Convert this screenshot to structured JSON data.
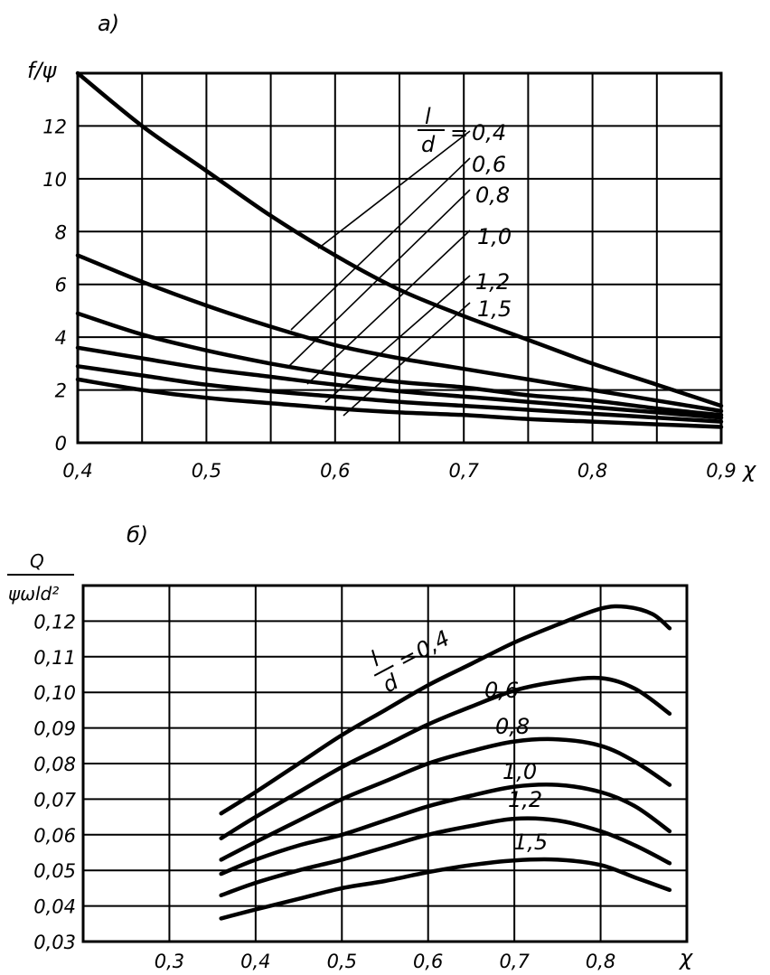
{
  "chart_data": [
    {
      "type": "line",
      "panel_label": "a)",
      "ylabel": "f/ψ",
      "xlabel": "χ",
      "xlim": [
        0.4,
        0.9
      ],
      "ylim": [
        0,
        14
      ],
      "x_ticks": [
        "0,4",
        "0,5",
        "0,6",
        "0,7",
        "0,8",
        "0,9"
      ],
      "y_ticks": [
        "0",
        "2",
        "4",
        "6",
        "8",
        "10",
        "12"
      ],
      "legend_ratio": {
        "num": "l",
        "den": "d"
      },
      "series": [
        {
          "name": "0,4",
          "x": [
            0.4,
            0.45,
            0.5,
            0.55,
            0.6,
            0.65,
            0.7,
            0.75,
            0.8,
            0.85,
            0.9
          ],
          "y": [
            14.0,
            12.0,
            10.3,
            8.6,
            7.1,
            5.8,
            4.8,
            3.9,
            3.0,
            2.2,
            1.4
          ]
        },
        {
          "name": "0,6",
          "x": [
            0.4,
            0.45,
            0.5,
            0.55,
            0.6,
            0.65,
            0.7,
            0.75,
            0.8,
            0.85,
            0.9
          ],
          "y": [
            7.1,
            6.1,
            5.2,
            4.4,
            3.7,
            3.2,
            2.8,
            2.4,
            2.0,
            1.6,
            1.2
          ]
        },
        {
          "name": "0,8",
          "x": [
            0.4,
            0.45,
            0.5,
            0.55,
            0.6,
            0.65,
            0.7,
            0.75,
            0.8,
            0.85,
            0.9
          ],
          "y": [
            4.9,
            4.1,
            3.5,
            3.0,
            2.6,
            2.3,
            2.1,
            1.8,
            1.6,
            1.3,
            1.05
          ]
        },
        {
          "name": "1,0",
          "x": [
            0.4,
            0.45,
            0.5,
            0.55,
            0.6,
            0.65,
            0.7,
            0.75,
            0.8,
            0.85,
            0.9
          ],
          "y": [
            3.6,
            3.2,
            2.8,
            2.5,
            2.2,
            1.95,
            1.75,
            1.55,
            1.35,
            1.15,
            0.95
          ]
        },
        {
          "name": "1,2",
          "x": [
            0.4,
            0.45,
            0.5,
            0.55,
            0.6,
            0.65,
            0.7,
            0.75,
            0.8,
            0.85,
            0.9
          ],
          "y": [
            2.9,
            2.55,
            2.2,
            1.95,
            1.75,
            1.55,
            1.4,
            1.25,
            1.1,
            0.95,
            0.8
          ]
        },
        {
          "name": "1,5",
          "x": [
            0.4,
            0.45,
            0.5,
            0.55,
            0.6,
            0.65,
            0.7,
            0.75,
            0.8,
            0.85,
            0.9
          ],
          "y": [
            2.4,
            2.0,
            1.7,
            1.5,
            1.3,
            1.15,
            1.05,
            0.9,
            0.8,
            0.7,
            0.6
          ]
        }
      ]
    },
    {
      "type": "line",
      "panel_label": "б)",
      "ylabel_num": "Q",
      "ylabel_den": "ψωld²",
      "xlabel": "χ",
      "xlim": [
        0.2,
        0.9
      ],
      "ylim": [
        0.03,
        0.13
      ],
      "x_ticks": [
        "0,3",
        "0,4",
        "0,5",
        "0,6",
        "0,7",
        "0,8"
      ],
      "y_ticks": [
        "0,03",
        "0,04",
        "0,05",
        "0,06",
        "0,07",
        "0,08",
        "0,09",
        "0,10",
        "0,11",
        "0,12"
      ],
      "legend_ratio": {
        "num": "l",
        "den": "d"
      },
      "series": [
        {
          "name": "0,4",
          "x": [
            0.36,
            0.4,
            0.45,
            0.5,
            0.55,
            0.6,
            0.65,
            0.7,
            0.75,
            0.8,
            0.83,
            0.86,
            0.88
          ],
          "y": [
            0.066,
            0.072,
            0.08,
            0.088,
            0.095,
            0.102,
            0.108,
            0.114,
            0.119,
            0.1235,
            0.124,
            0.122,
            0.118
          ]
        },
        {
          "name": "0,6",
          "x": [
            0.36,
            0.4,
            0.45,
            0.5,
            0.55,
            0.6,
            0.65,
            0.7,
            0.75,
            0.8,
            0.84,
            0.88
          ],
          "y": [
            0.059,
            0.065,
            0.072,
            0.079,
            0.085,
            0.091,
            0.096,
            0.1005,
            0.103,
            0.104,
            0.101,
            0.094
          ]
        },
        {
          "name": "0,8",
          "x": [
            0.36,
            0.4,
            0.45,
            0.5,
            0.55,
            0.6,
            0.65,
            0.7,
            0.75,
            0.8,
            0.84,
            0.88
          ],
          "y": [
            0.053,
            0.058,
            0.064,
            0.07,
            0.075,
            0.08,
            0.0835,
            0.0862,
            0.0868,
            0.085,
            0.0805,
            0.074
          ]
        },
        {
          "name": "1,0",
          "x": [
            0.36,
            0.4,
            0.45,
            0.5,
            0.55,
            0.6,
            0.65,
            0.7,
            0.75,
            0.8,
            0.84,
            0.88
          ],
          "y": [
            0.049,
            0.053,
            0.057,
            0.06,
            0.064,
            0.068,
            0.071,
            0.0735,
            0.074,
            0.072,
            0.068,
            0.061
          ]
        },
        {
          "name": "1,2",
          "x": [
            0.36,
            0.4,
            0.45,
            0.5,
            0.55,
            0.6,
            0.65,
            0.7,
            0.75,
            0.8,
            0.84,
            0.88
          ],
          "y": [
            0.043,
            0.0465,
            0.05,
            0.053,
            0.0565,
            0.06,
            0.0625,
            0.0645,
            0.064,
            0.061,
            0.057,
            0.052
          ]
        },
        {
          "name": "1,5",
          "x": [
            0.36,
            0.4,
            0.45,
            0.5,
            0.55,
            0.6,
            0.65,
            0.7,
            0.75,
            0.8,
            0.84,
            0.88
          ],
          "y": [
            0.0365,
            0.039,
            0.042,
            0.045,
            0.047,
            0.0495,
            0.0515,
            0.0528,
            0.053,
            0.0515,
            0.048,
            0.0445
          ]
        }
      ]
    }
  ]
}
